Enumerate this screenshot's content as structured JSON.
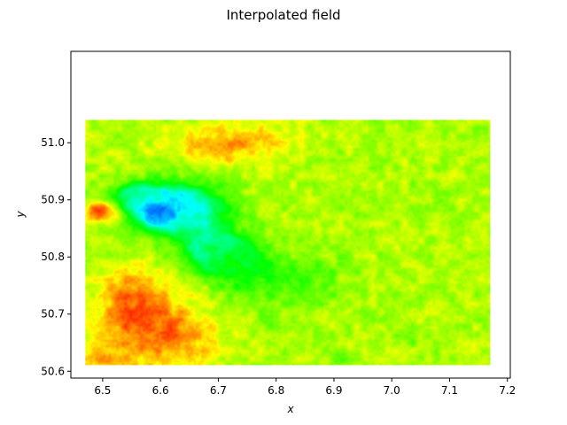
{
  "chart_data": {
    "type": "heatmap",
    "title": "Interpolated field",
    "xlabel": "x",
    "ylabel": "y",
    "xlim": [
      6.445,
      7.205
    ],
    "ylim": [
      50.588,
      51.16
    ],
    "field_extent": {
      "x": [
        6.47,
        7.17
      ],
      "y": [
        50.61,
        51.04
      ]
    },
    "colormap": "hsv-like (red → yellow → green → cyan → blue)",
    "x_ticks": [
      6.5,
      6.6,
      6.7,
      6.8,
      6.9,
      7.0,
      7.1,
      7.2
    ],
    "x_tick_labels": [
      "6.5",
      "6.6",
      "6.7",
      "6.8",
      "6.9",
      "7.0",
      "7.1",
      "7.2"
    ],
    "y_ticks": [
      50.6,
      50.7,
      50.8,
      50.9,
      51.0
    ],
    "y_tick_labels": [
      "50.6",
      "50.7",
      "50.8",
      "50.9",
      "51.0"
    ],
    "background_value": 0.22,
    "features": [
      {
        "kind": "blob",
        "x": 6.6,
        "y": 50.878,
        "rx": 0.022,
        "ry": 0.016,
        "value": 0.72,
        "note": "blue minimum"
      },
      {
        "kind": "blob",
        "x": 6.6,
        "y": 50.885,
        "rx": 0.055,
        "ry": 0.035,
        "value": 0.5
      },
      {
        "kind": "blob",
        "x": 6.64,
        "y": 50.885,
        "rx": 0.08,
        "ry": 0.045,
        "value": 0.44
      },
      {
        "kind": "blob",
        "x": 6.68,
        "y": 50.82,
        "rx": 0.045,
        "ry": 0.04,
        "value": 0.4
      },
      {
        "kind": "blob",
        "x": 6.72,
        "y": 50.8,
        "rx": 0.05,
        "ry": 0.04,
        "value": 0.36
      },
      {
        "kind": "blob",
        "x": 6.55,
        "y": 50.91,
        "rx": 0.04,
        "ry": 0.02,
        "value": 0.38
      },
      {
        "kind": "blob",
        "x": 6.76,
        "y": 50.77,
        "rx": 0.06,
        "ry": 0.05,
        "value": 0.3
      },
      {
        "kind": "blob",
        "x": 6.5,
        "y": 50.88,
        "rx": 0.03,
        "ry": 0.02,
        "value": 0.03
      },
      {
        "kind": "blob",
        "x": 6.55,
        "y": 50.72,
        "rx": 0.06,
        "ry": 0.06,
        "value": 0.08
      },
      {
        "kind": "blob",
        "x": 6.62,
        "y": 50.66,
        "rx": 0.08,
        "ry": 0.06,
        "value": 0.09
      },
      {
        "kind": "blob",
        "x": 6.72,
        "y": 51.0,
        "rx": 0.1,
        "ry": 0.04,
        "value": 0.11
      },
      {
        "kind": "blob",
        "x": 6.91,
        "y": 50.62,
        "rx": 0.018,
        "ry": 0.012,
        "value": 0.28
      },
      {
        "kind": "blob",
        "x": 7.03,
        "y": 50.66,
        "rx": 0.02,
        "ry": 0.012,
        "value": 0.25
      },
      {
        "kind": "blob",
        "x": 6.79,
        "y": 50.69,
        "rx": 0.015,
        "ry": 0.012,
        "value": 0.26
      },
      {
        "kind": "blob",
        "x": 6.85,
        "y": 50.76,
        "rx": 0.08,
        "ry": 0.05,
        "value": 0.27
      },
      {
        "kind": "blob",
        "x": 6.5,
        "y": 50.62,
        "rx": 0.05,
        "ry": 0.05,
        "value": 0.13
      }
    ]
  }
}
